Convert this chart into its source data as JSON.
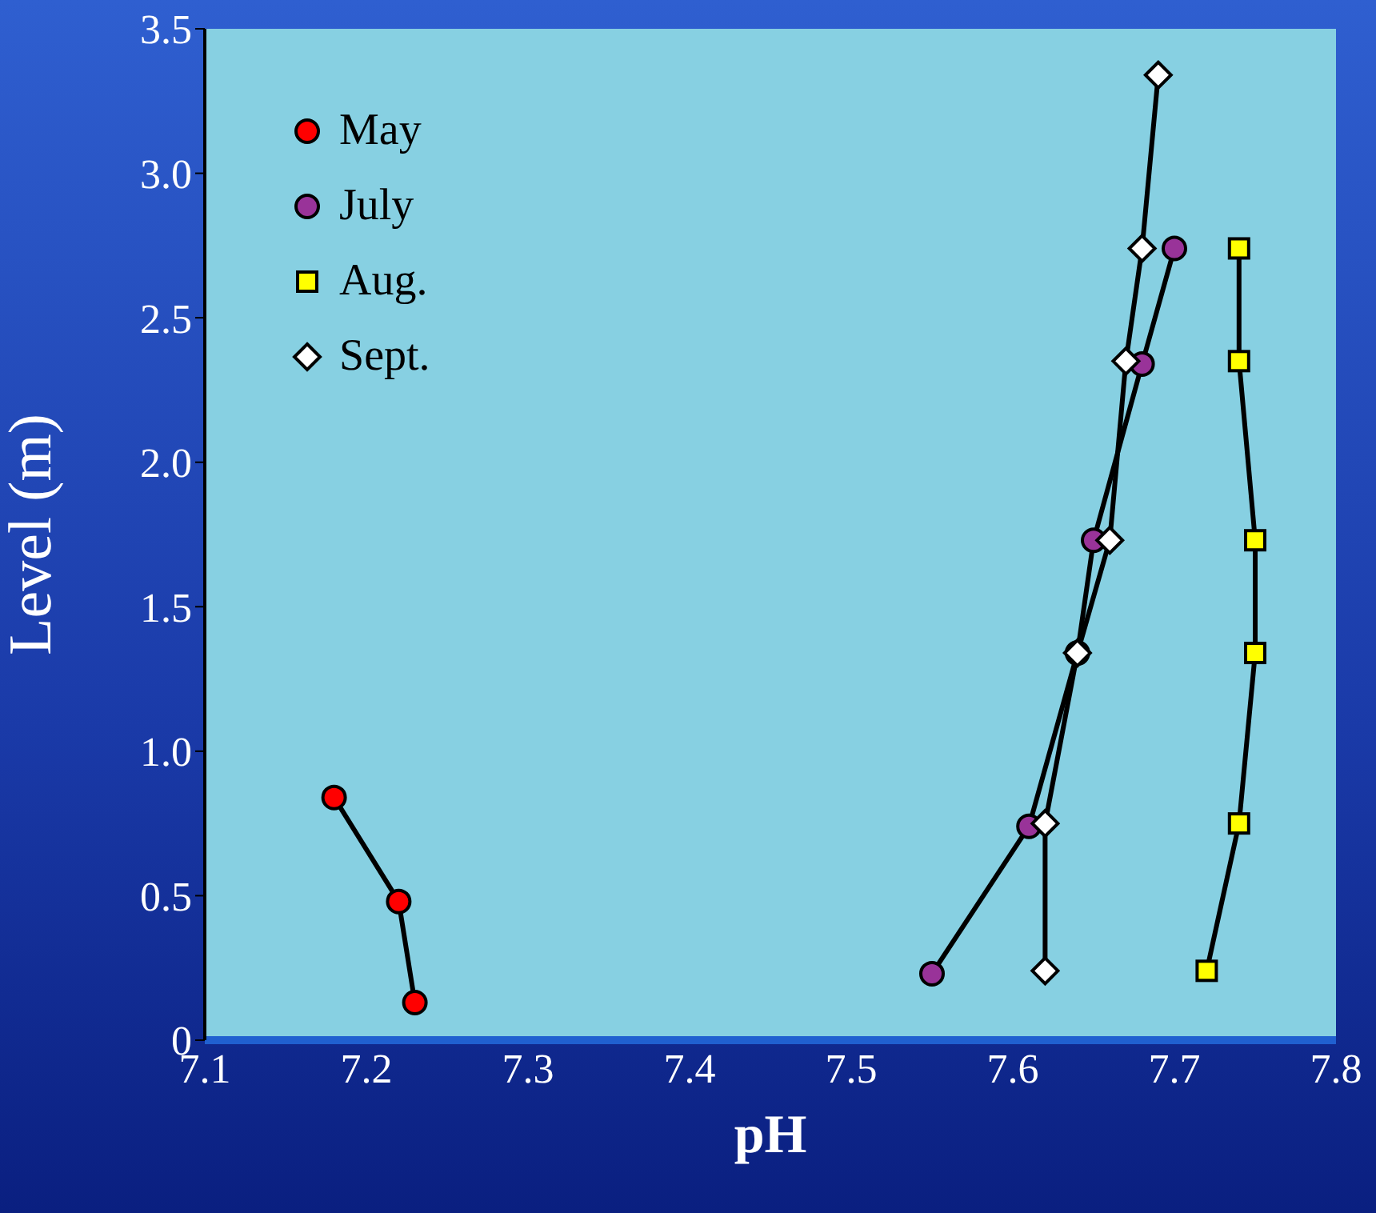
{
  "chart_data": {
    "type": "line",
    "xlabel": "pH",
    "ylabel": "Level (m)",
    "xlim": [
      7.1,
      7.8
    ],
    "xticks": [
      7.1,
      7.2,
      7.3,
      7.4,
      7.5,
      7.6,
      7.7,
      7.8
    ],
    "ylim": [
      0,
      3.5
    ],
    "yticks": [
      0,
      {
        "value": 0.5,
        "label": "0.5"
      },
      {
        "value": 1,
        "label": "1.0"
      },
      {
        "value": 1.5,
        "label": "1.5"
      },
      {
        "value": 2,
        "label": "2.0"
      },
      {
        "value": 2.5,
        "label": "2.5"
      },
      {
        "value": 3,
        "label": "3.0"
      },
      {
        "value": 3.5,
        "label": "3.5"
      }
    ],
    "grid": false,
    "legend": "top left",
    "line_style": "solid",
    "series": [
      {
        "name": "May",
        "color": "#ff0000",
        "marker": "circle",
        "x": [
          7.18,
          7.22,
          7.23
        ],
        "values": [
          0.84,
          0.48,
          0.13
        ]
      },
      {
        "name": "July",
        "color": "#993399",
        "marker": "circle",
        "x": [
          7.55,
          7.61,
          7.64,
          7.65,
          7.68,
          7.7
        ],
        "values": [
          0.23,
          0.74,
          1.34,
          1.73,
          2.34,
          2.74
        ]
      },
      {
        "name": "Aug.",
        "color": "#ffff00",
        "marker": "square",
        "x": [
          7.72,
          7.74,
          7.75,
          7.75,
          7.74,
          7.74
        ],
        "values": [
          0.24,
          0.75,
          1.34,
          1.73,
          2.35,
          2.74
        ]
      },
      {
        "name": "Sept.",
        "color": "#ffffff",
        "marker": "diamond",
        "x": [
          7.62,
          7.62,
          7.64,
          7.66,
          7.67,
          7.68,
          7.69
        ],
        "values": [
          0.24,
          0.75,
          1.34,
          1.73,
          2.35,
          2.74,
          3.34
        ]
      }
    ]
  }
}
